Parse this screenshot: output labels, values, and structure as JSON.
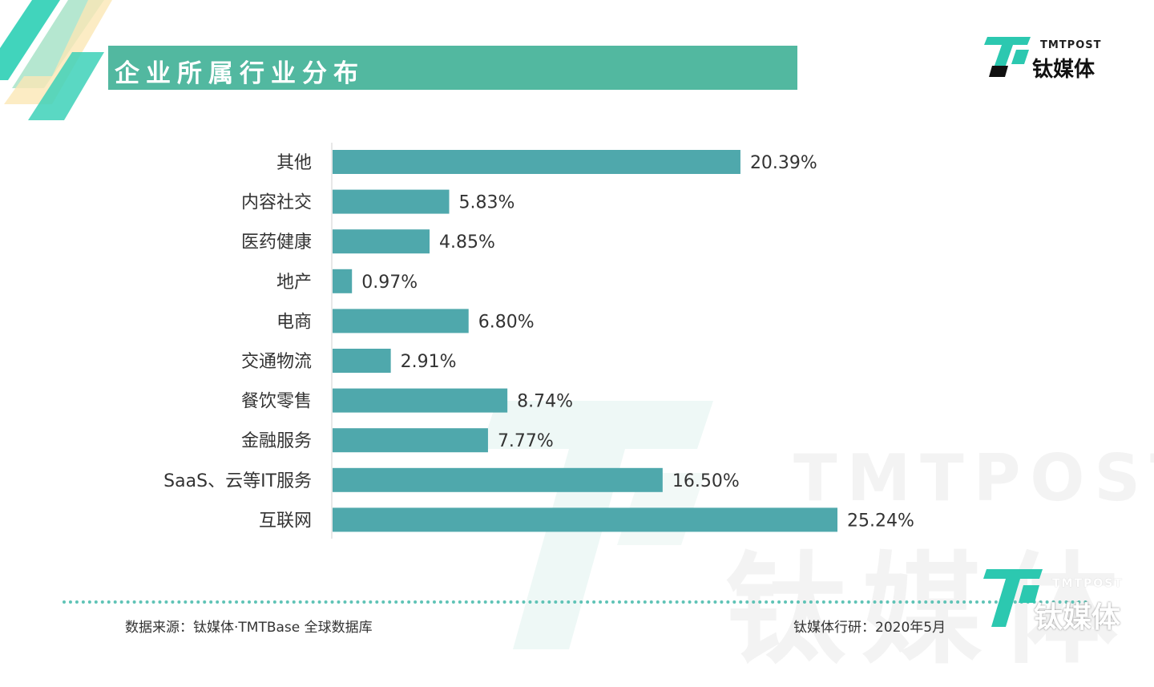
{
  "header": {
    "title": "企业所属行业分布"
  },
  "logo": {
    "en": "TMTPOST",
    "cn": "钛媒体"
  },
  "watermark": {
    "en": "TMTPOST",
    "cn": "钛媒体"
  },
  "colors": {
    "bar": "#4fa8ac",
    "accent": "#52b8a0",
    "logo_teal": "#2cc8b0"
  },
  "chart_data": {
    "type": "bar",
    "orientation": "horizontal",
    "categories": [
      "其他",
      "内容社交",
      "医药健康",
      "地产",
      "电商",
      "交通物流",
      "餐饮零售",
      "金融服务",
      "SaaS、云等IT服务",
      "互联网"
    ],
    "values": [
      20.39,
      5.83,
      4.85,
      0.97,
      6.8,
      2.91,
      8.74,
      7.77,
      16.5,
      25.24
    ],
    "labels": [
      "20.39%",
      "5.83%",
      "4.85%",
      "0.97%",
      "6.80%",
      "2.91%",
      "8.74%",
      "7.77%",
      "16.50%",
      "25.24%"
    ],
    "title": "企业所属行业分布",
    "xlim": [
      0,
      25.24
    ],
    "grid": false,
    "legend": "none"
  },
  "footer": {
    "source": "数据来源：钛媒体·TMTBase 全球数据库",
    "credit": "钛媒体行研：2020年5月"
  }
}
